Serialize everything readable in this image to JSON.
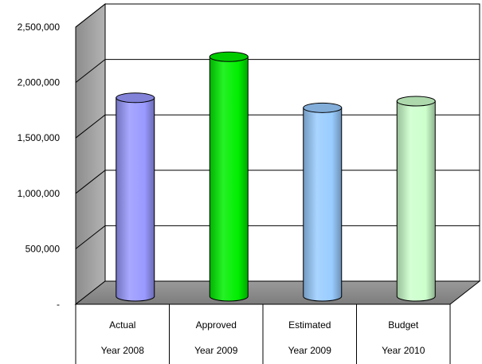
{
  "chart_data": {
    "type": "bar",
    "style": "3d-cylinder",
    "categories": [
      [
        "Actual",
        "Year 2008"
      ],
      [
        "Approved",
        "Year 2009"
      ],
      [
        "Estimated",
        "Year 2009"
      ],
      [
        "Budget",
        "Year 2010"
      ]
    ],
    "values": [
      1740000,
      2110000,
      1650000,
      1710000
    ],
    "colors": [
      "#9999ff",
      "#00ee00",
      "#99ccff",
      "#ccffcc"
    ],
    "ylim": [
      0,
      2500000
    ],
    "yticks": [
      {
        "value": 2500000,
        "label": "2,500,000"
      },
      {
        "value": 2000000,
        "label": "2,000,000"
      },
      {
        "value": 1500000,
        "label": "1,500,000"
      },
      {
        "value": 1000000,
        "label": "1,000,000"
      },
      {
        "value": 500000,
        "label": "500,000"
      },
      {
        "value": 0,
        "label": "-"
      }
    ],
    "grid": true,
    "legend": "none",
    "title": "",
    "xlabel": "",
    "ylabel": ""
  }
}
